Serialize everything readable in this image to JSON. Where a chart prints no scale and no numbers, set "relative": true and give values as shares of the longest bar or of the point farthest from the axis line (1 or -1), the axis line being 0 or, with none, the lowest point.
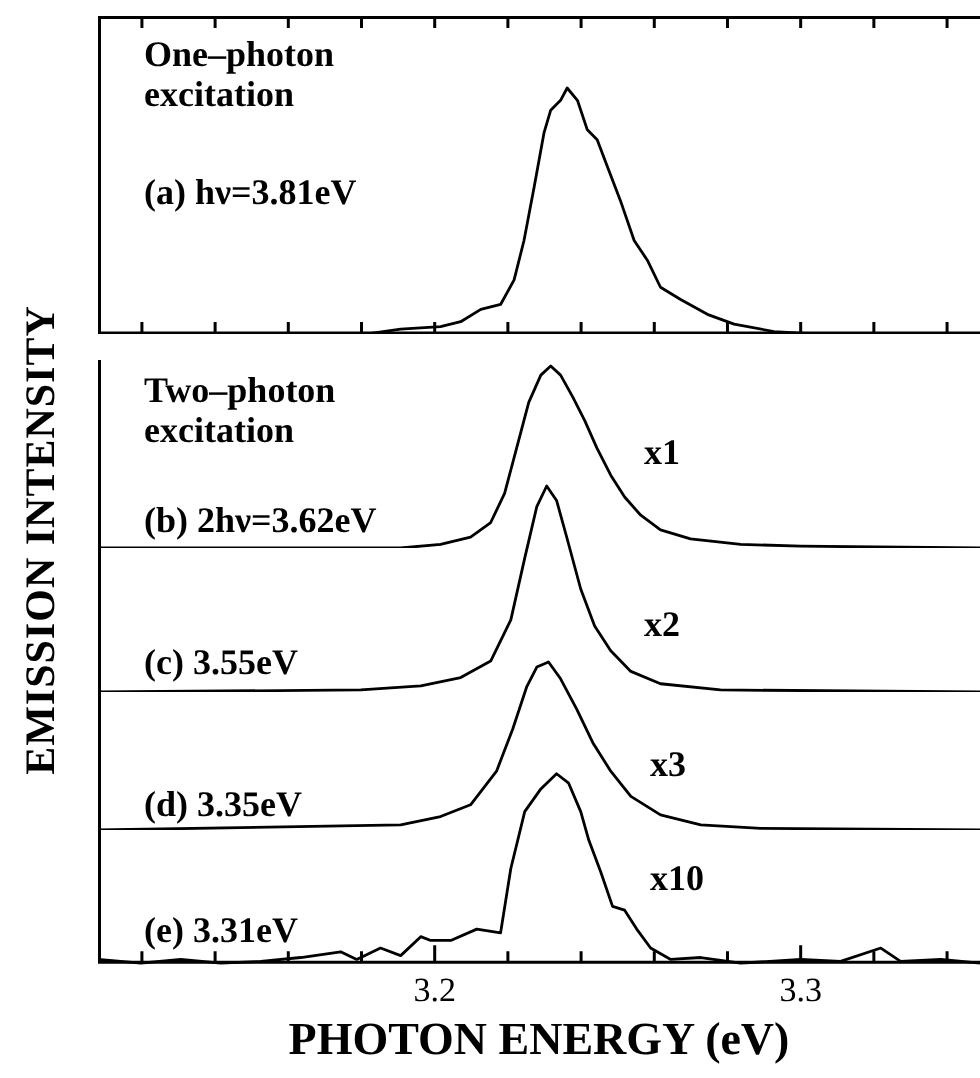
{
  "chart_data": [
    {
      "type": "line",
      "relative": true,
      "ylabel": "EMISSION INTENSITY",
      "xlim": [
        3.108,
        3.349
      ],
      "tick_labels": false,
      "legend": false,
      "marker": "none",
      "line_style": "solid",
      "annotations": [
        "One–photon excitation",
        "(a) hν=3.81eV"
      ],
      "xticks": [
        {
          "value": 3.12,
          "label": null
        },
        {
          "value": 3.14,
          "label": null
        },
        {
          "value": 3.16,
          "label": null
        },
        {
          "value": 3.18,
          "label": null
        },
        {
          "value": 3.2,
          "label": null
        },
        {
          "value": 3.22,
          "label": null
        },
        {
          "value": 3.24,
          "label": null
        },
        {
          "value": 3.26,
          "label": null
        },
        {
          "value": 3.28,
          "label": null
        },
        {
          "value": 3.3,
          "label": null
        },
        {
          "value": 3.32,
          "label": null
        },
        {
          "value": 3.34,
          "label": null
        }
      ],
      "series": [
        {
          "color": "#000000",
          "x": [
            3.164,
            3.1816,
            3.1907,
            3.2016,
            3.2071,
            3.2126,
            3.218,
            3.2217,
            3.2244,
            3.2272,
            3.2299,
            3.2317,
            3.2344,
            3.2362,
            3.239,
            3.2417,
            3.2444,
            3.2472,
            3.2508,
            3.2545,
            3.2581,
            3.2617,
            3.2672,
            3.2745,
            3.2818,
            3.2927,
            3.3037
          ],
          "values": [
            0,
            0,
            0.02,
            0.03,
            0.05,
            0.1,
            0.12,
            0.22,
            0.38,
            0.6,
            0.82,
            0.91,
            0.95,
            1,
            0.95,
            0.83,
            0.79,
            0.68,
            0.54,
            0.38,
            0.3,
            0.19,
            0.14,
            0.08,
            0.04,
            0.01,
            0
          ]
        }
      ]
    },
    {
      "type": "line",
      "relative": true,
      "xlim": [
        3.108,
        3.349
      ],
      "tick_labels": false,
      "legend": false,
      "marker": "none",
      "line_style": "solid",
      "annotations": [
        "Two–photon excitation",
        "(b) 2hν=3.62eV",
        "x1"
      ],
      "series": [
        {
          "color": "#000000",
          "x": [
            3.108,
            3.1907,
            3.2016,
            3.2098,
            3.2153,
            3.2191,
            3.2224,
            3.2257,
            3.229,
            3.2317,
            3.2344,
            3.2377,
            3.241,
            3.2443,
            3.2481,
            3.2519,
            3.2563,
            3.2617,
            3.2699,
            3.2836,
            3.3,
            3.349
          ],
          "values": [
            0,
            0,
            0.02,
            0.06,
            0.14,
            0.3,
            0.55,
            0.8,
            0.95,
            1,
            0.95,
            0.83,
            0.7,
            0.55,
            0.4,
            0.28,
            0.18,
            0.1,
            0.05,
            0.02,
            0.01,
            0
          ]
        }
      ]
    },
    {
      "type": "line",
      "relative": true,
      "xlim": [
        3.108,
        3.349
      ],
      "tick_labels": false,
      "legend": false,
      "marker": "none",
      "line_style": "solid",
      "annotations": [
        "(c) 3.55eV",
        "x2"
      ],
      "series": [
        {
          "color": "#000000",
          "x": [
            3.108,
            3.1798,
            3.1962,
            3.2071,
            3.2153,
            3.2208,
            3.2246,
            3.2279,
            3.2306,
            3.2333,
            3.2361,
            3.2399,
            3.2437,
            3.2481,
            3.2536,
            3.2617,
            3.2781,
            3.349
          ],
          "values": [
            0,
            0.01,
            0.03,
            0.07,
            0.15,
            0.35,
            0.65,
            0.9,
            1,
            0.93,
            0.75,
            0.5,
            0.32,
            0.2,
            0.1,
            0.04,
            0.01,
            0
          ]
        }
      ]
    },
    {
      "type": "line",
      "relative": true,
      "xlim": [
        3.108,
        3.349
      ],
      "tick_labels": false,
      "legend": false,
      "marker": "none",
      "line_style": "solid",
      "annotations": [
        "(d) 3.35eV",
        "x3"
      ],
      "series": [
        {
          "color": "#000000",
          "x": [
            3.108,
            3.1907,
            3.2016,
            3.2098,
            3.2169,
            3.2213,
            3.2251,
            3.2279,
            3.2311,
            3.2344,
            3.2388,
            3.2432,
            3.2481,
            3.2536,
            3.2617,
            3.2727,
            3.2891,
            3.349
          ],
          "values": [
            0,
            0.03,
            0.08,
            0.15,
            0.35,
            0.6,
            0.85,
            0.97,
            1,
            0.9,
            0.72,
            0.52,
            0.35,
            0.2,
            0.09,
            0.03,
            0.01,
            0
          ]
        }
      ]
    },
    {
      "type": "line",
      "relative": true,
      "xlabel": "PHOTON ENERGY (eV)",
      "xlim": [
        3.108,
        3.349
      ],
      "tick_labels": "x",
      "legend": false,
      "marker": "none",
      "line_style": "solid",
      "annotations": [
        "(e) 3.31eV",
        "x10"
      ],
      "xticks": [
        {
          "value": 3.12,
          "label": null
        },
        {
          "value": 3.14,
          "label": null
        },
        {
          "value": 3.16,
          "label": null
        },
        {
          "value": 3.18,
          "label": null
        },
        3.2,
        {
          "value": 3.22,
          "label": null
        },
        {
          "value": 3.24,
          "label": null
        },
        {
          "value": 3.26,
          "label": null
        },
        {
          "value": 3.28,
          "label": null
        },
        3.3,
        {
          "value": 3.32,
          "label": null
        },
        {
          "value": 3.34,
          "label": null
        }
      ],
      "series": [
        {
          "color": "#000000",
          "x": [
            3.108,
            3.1197,
            3.1306,
            3.1415,
            3.1525,
            3.1634,
            3.1743,
            3.1787,
            3.1852,
            3.1907,
            3.1962,
            3.1989,
            3.2044,
            3.2115,
            3.218,
            3.2208,
            3.2246,
            3.229,
            3.2333,
            3.2366,
            3.2399,
            3.2421,
            3.2454,
            3.2486,
            3.2519,
            3.2552,
            3.259,
            3.2645,
            3.2727,
            3.2836,
            3.3,
            3.3109,
            3.3219,
            3.3273,
            3.3383,
            3.349
          ],
          "values": [
            0.02,
            0,
            0.02,
            0,
            0.01,
            0.03,
            0.06,
            0.02,
            0.08,
            0.04,
            0.14,
            0.12,
            0.12,
            0.18,
            0.16,
            0.5,
            0.8,
            0.92,
            1,
            0.95,
            0.8,
            0.65,
            0.48,
            0.3,
            0.28,
            0.18,
            0.08,
            0.02,
            0.03,
            0,
            0.02,
            0.01,
            0.08,
            0.01,
            0.02,
            0
          ]
        }
      ]
    }
  ]
}
